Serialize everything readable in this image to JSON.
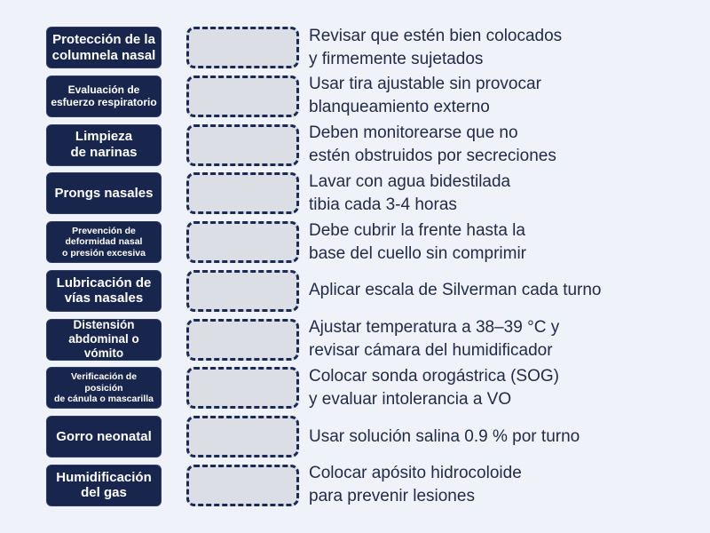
{
  "activity": {
    "type": "match-up",
    "background_color": "#eff2f8",
    "tile_color": "#18264e",
    "tile_text_color": "#ffffff",
    "slot_fill_color": "#dcdee6",
    "slot_border_color": "#1b2a55",
    "clue_text_color": "#222b47"
  },
  "rows": [
    {
      "label": "Protección de la\ncolumnela nasal",
      "answer": "Revisar que estén bien colocados\ny firmemente sujetados"
    },
    {
      "label": "Evaluación de\nesfuerzo respiratorio",
      "answer": "Usar tira ajustable sin provocar\nblanqueamiento externo"
    },
    {
      "label": "Limpieza\nde narinas",
      "answer": "Deben monitorearse que no\nestén obstruidos por secreciones"
    },
    {
      "label": "Prongs nasales",
      "answer": "Lavar con agua bidestilada\ntibia cada 3-4 horas"
    },
    {
      "label": "Prevención de\ndeformidad nasal\no presión excesiva",
      "answer": "Debe cubrir la frente hasta la\nbase del cuello sin comprimir"
    },
    {
      "label": "Lubricación de\nvías nasales",
      "answer": "Aplicar escala de Silverman cada turno"
    },
    {
      "label": "Distensión\nabdominal o vómito",
      "answer": "Ajustar temperatura a 38–39 °C y\nrevisar cámara del humidificador"
    },
    {
      "label": "Verificación de posición\nde cánula o mascarilla",
      "answer": "Colocar sonda orogástrica (SOG)\ny evaluar intolerancia a VO"
    },
    {
      "label": "Gorro neonatal",
      "answer": "Usar solución salina 0.9 % por turno"
    },
    {
      "label": "Humidificación\ndel gas",
      "answer": "Colocar apósito hidrocoloide\npara prevenir lesiones"
    }
  ]
}
